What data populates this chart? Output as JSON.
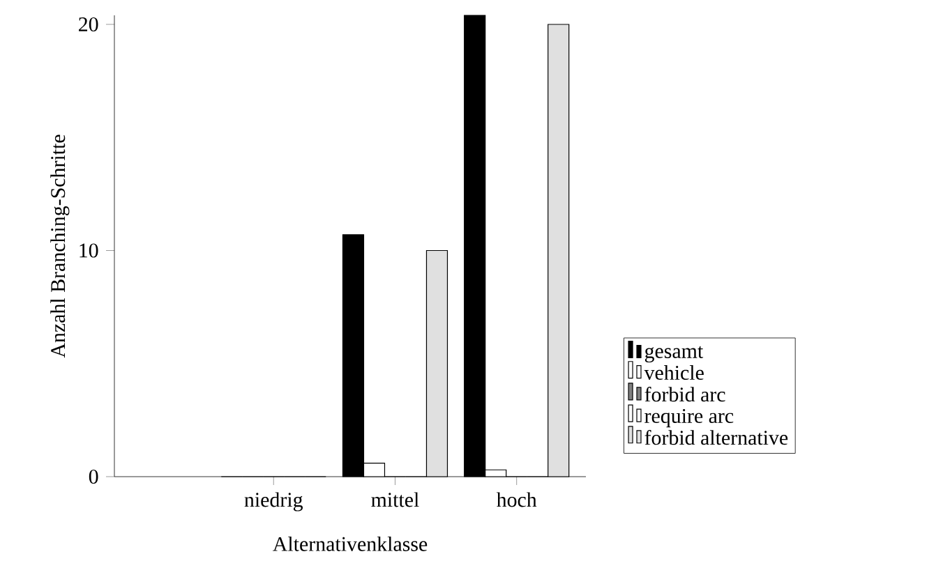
{
  "chart_data": {
    "type": "bar",
    "xlabel": "Alternativenklasse",
    "ylabel": "Anzahl Branching-Schritte",
    "categories": [
      "niedrig",
      "mittel",
      "hoch"
    ],
    "series": [
      {
        "name": "gesamt",
        "color": "#000000",
        "values": [
          0,
          10.7,
          20.4
        ]
      },
      {
        "name": "vehicle",
        "color": "#ffffff",
        "values": [
          0,
          0.6,
          0.3
        ]
      },
      {
        "name": "forbid arc",
        "color": "#808080",
        "values": [
          0,
          0,
          0
        ]
      },
      {
        "name": "require arc",
        "color": "#ffffff",
        "values": [
          0,
          0,
          0
        ]
      },
      {
        "name": "forbid alternative",
        "color": "#e0e0e0",
        "values": [
          0,
          10,
          20
        ]
      }
    ],
    "ylim": [
      0,
      20.4
    ],
    "yticks": [
      0,
      10,
      20
    ],
    "legend": "right",
    "grid": false
  }
}
